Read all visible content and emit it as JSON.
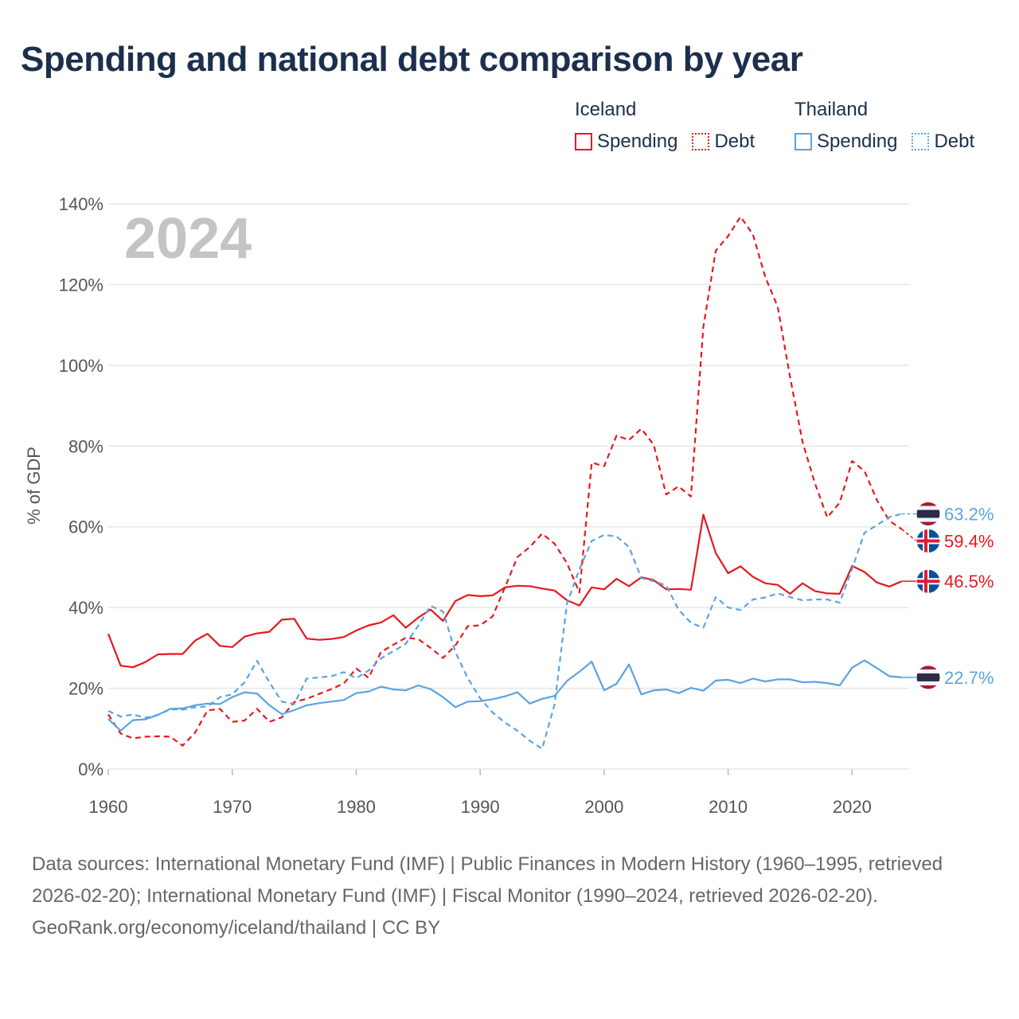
{
  "chart_data": {
    "type": "line",
    "title": "Spending and national debt comparison by year",
    "year_watermark": "2024",
    "ylabel": "% of GDP",
    "xlabel": "",
    "xlim": [
      1960,
      2024
    ],
    "ylim": [
      0,
      140
    ],
    "x_ticks": [
      1960,
      1970,
      1980,
      1990,
      2000,
      2010,
      2020
    ],
    "y_ticks": [
      0,
      20,
      40,
      60,
      80,
      100,
      120,
      140
    ],
    "y_tick_suffix": "%",
    "grid": true,
    "legend": {
      "placement": "top-right",
      "groups": [
        {
          "country": "Iceland",
          "spending_label": "Spending",
          "debt_label": "Debt",
          "color": "#e5191f"
        },
        {
          "country": "Thailand",
          "spending_label": "Spending",
          "debt_label": "Debt",
          "color": "#5ba3e3"
        }
      ]
    },
    "series": [
      {
        "name": "Iceland Spending",
        "country": "Iceland",
        "metric": "Spending",
        "color": "#e5191f",
        "dash": "solid",
        "end_label": "46.5%",
        "x": [
          1960,
          1961,
          1962,
          1963,
          1964,
          1965,
          1966,
          1967,
          1968,
          1969,
          1970,
          1971,
          1972,
          1973,
          1974,
          1975,
          1976,
          1977,
          1978,
          1979,
          1980,
          1981,
          1982,
          1983,
          1984,
          1985,
          1986,
          1987,
          1988,
          1989,
          1990,
          1991,
          1992,
          1993,
          1994,
          1995,
          1996,
          1997,
          1998,
          1999,
          2000,
          2001,
          2002,
          2003,
          2004,
          2005,
          2006,
          2007,
          2008,
          2009,
          2010,
          2011,
          2012,
          2013,
          2014,
          2015,
          2016,
          2017,
          2018,
          2019,
          2020,
          2021,
          2022,
          2023,
          2024
        ],
        "values": [
          33.5,
          25.6,
          25.2,
          26.5,
          28.4,
          28.5,
          28.5,
          31.8,
          33.5,
          30.5,
          30.2,
          32.8,
          33.6,
          34,
          37,
          37.2,
          32.3,
          32,
          32.2,
          32.7,
          34.3,
          35.6,
          36.3,
          38.1,
          35,
          37.5,
          39.5,
          36.7,
          41.6,
          43.1,
          42.8,
          43,
          45,
          45.4,
          45.3,
          44.7,
          44.2,
          41.8,
          40.5,
          45,
          44.5,
          47.1,
          45.3,
          47.5,
          46.8,
          44.5,
          44.6,
          44.4,
          63,
          53.5,
          48.5,
          50.2,
          47.6,
          46,
          45.6,
          43.4,
          46,
          44.1,
          43.5,
          43.4,
          50.3,
          48.8,
          46.2,
          45.2,
          46.5
        ]
      },
      {
        "name": "Iceland Debt",
        "country": "Iceland",
        "metric": "Debt",
        "color": "#e5191f",
        "dash": "dotted",
        "end_label": "59.4%",
        "x": [
          1960,
          1961,
          1962,
          1963,
          1964,
          1965,
          1966,
          1967,
          1968,
          1969,
          1970,
          1971,
          1972,
          1973,
          1974,
          1975,
          1976,
          1977,
          1978,
          1979,
          1980,
          1981,
          1982,
          1983,
          1984,
          1985,
          1986,
          1987,
          1988,
          1989,
          1990,
          1991,
          1992,
          1993,
          1994,
          1995,
          1996,
          1997,
          1998,
          1999,
          2000,
          2001,
          2002,
          2003,
          2004,
          2005,
          2006,
          2007,
          2008,
          2009,
          2010,
          2011,
          2012,
          2013,
          2014,
          2015,
          2016,
          2017,
          2018,
          2019,
          2020,
          2021,
          2022,
          2023,
          2024
        ],
        "values": [
          13.5,
          8.8,
          7.6,
          8,
          8.1,
          8,
          5.8,
          9,
          14.5,
          14.9,
          11.7,
          12,
          14.9,
          11.7,
          12.8,
          16.6,
          17.4,
          18.6,
          19.8,
          21.2,
          24.9,
          22.6,
          29,
          30.8,
          32.5,
          32.2,
          30,
          27.5,
          30.6,
          35.4,
          35.6,
          37.8,
          45,
          52.5,
          55,
          58.3,
          55.8,
          51,
          43.7,
          75.9,
          75,
          82.6,
          81.5,
          84.3,
          80.3,
          68,
          70,
          67.5,
          109.5,
          128.4,
          132,
          136.8,
          132.4,
          121.8,
          114.5,
          97,
          81,
          70.8,
          62.3,
          66,
          76.3,
          73.8,
          66.6,
          61.5,
          59.4
        ]
      },
      {
        "name": "Thailand Spending",
        "country": "Thailand",
        "metric": "Spending",
        "color": "#5ba3e3",
        "dash": "solid",
        "end_label": "22.7%",
        "x": [
          1960,
          1961,
          1962,
          1963,
          1964,
          1965,
          1966,
          1967,
          1968,
          1969,
          1970,
          1971,
          1972,
          1973,
          1974,
          1975,
          1976,
          1977,
          1978,
          1979,
          1980,
          1981,
          1982,
          1983,
          1984,
          1985,
          1986,
          1987,
          1988,
          1989,
          1990,
          1991,
          1992,
          1993,
          1994,
          1995,
          1996,
          1997,
          1998,
          1999,
          2000,
          2001,
          2002,
          2003,
          2004,
          2005,
          2006,
          2007,
          2008,
          2009,
          2010,
          2011,
          2012,
          2013,
          2014,
          2015,
          2016,
          2017,
          2018,
          2019,
          2020,
          2021,
          2022,
          2023,
          2024
        ],
        "values": [
          12.4,
          9.5,
          12.1,
          12.3,
          13.4,
          14.9,
          15,
          15.8,
          16.2,
          16.1,
          17.8,
          19,
          18.7,
          15.8,
          13.6,
          14.6,
          15.8,
          16.3,
          16.7,
          17.1,
          18.8,
          19.2,
          20.4,
          19.7,
          19.5,
          20.7,
          19.8,
          17.8,
          15.3,
          16.7,
          16.8,
          17.3,
          18,
          19,
          16.2,
          17.4,
          18.1,
          21.8,
          24.1,
          26.6,
          19.5,
          21.1,
          25.9,
          18.5,
          19.5,
          19.7,
          18.8,
          20.1,
          19.4,
          21.9,
          22.1,
          21.3,
          22.4,
          21.7,
          22.2,
          22.2,
          21.5,
          21.6,
          21.3,
          20.7,
          25.1,
          26.9,
          25,
          23,
          22.7
        ]
      },
      {
        "name": "Thailand Debt",
        "country": "Thailand",
        "metric": "Debt",
        "color": "#5ba3e3",
        "dash": "dotted",
        "end_label": "63.2%",
        "x": [
          1960,
          1961,
          1962,
          1963,
          1964,
          1965,
          1966,
          1967,
          1968,
          1969,
          1970,
          1971,
          1972,
          1973,
          1974,
          1975,
          1976,
          1977,
          1978,
          1979,
          1980,
          1981,
          1982,
          1983,
          1984,
          1985,
          1986,
          1987,
          1988,
          1989,
          1990,
          1991,
          1992,
          1993,
          1994,
          1995,
          1996,
          1997,
          1998,
          1999,
          2000,
          2001,
          2002,
          2003,
          2004,
          2005,
          2006,
          2007,
          2008,
          2009,
          2010,
          2011,
          2012,
          2013,
          2014,
          2015,
          2016,
          2017,
          2018,
          2019,
          2020,
          2021,
          2022,
          2023,
          2024
        ],
        "values": [
          14.4,
          13,
          13.5,
          12.7,
          13.4,
          14.8,
          14.7,
          15.3,
          15.5,
          17.8,
          18.5,
          21.5,
          26.8,
          21.5,
          16.7,
          16.1,
          22.4,
          22.7,
          23,
          24,
          22.5,
          24.4,
          27.4,
          29.2,
          31,
          35.5,
          40.4,
          39,
          29,
          22.5,
          17.5,
          14,
          11.5,
          9.5,
          7,
          5,
          16,
          41,
          49.5,
          56.5,
          58,
          57.6,
          55,
          47.3,
          46.5,
          45.5,
          39.5,
          36.2,
          35,
          42.6,
          40,
          39.4,
          42,
          42.5,
          43.5,
          42.6,
          41.8,
          42,
          42,
          41.2,
          49.6,
          58.5,
          60.4,
          62.4,
          63.2
        ]
      }
    ]
  },
  "footer": {
    "sources": "Data sources: International Monetary Fund (IMF) | Public Finances in Modern History (1960–1995, retrieved 2026-02-20); International Monetary Fund (IMF) | Fiscal Monitor (1990–2024, retrieved 2026-02-20).",
    "credit": "GeoRank.org/economy/iceland/thailand | CC BY"
  }
}
